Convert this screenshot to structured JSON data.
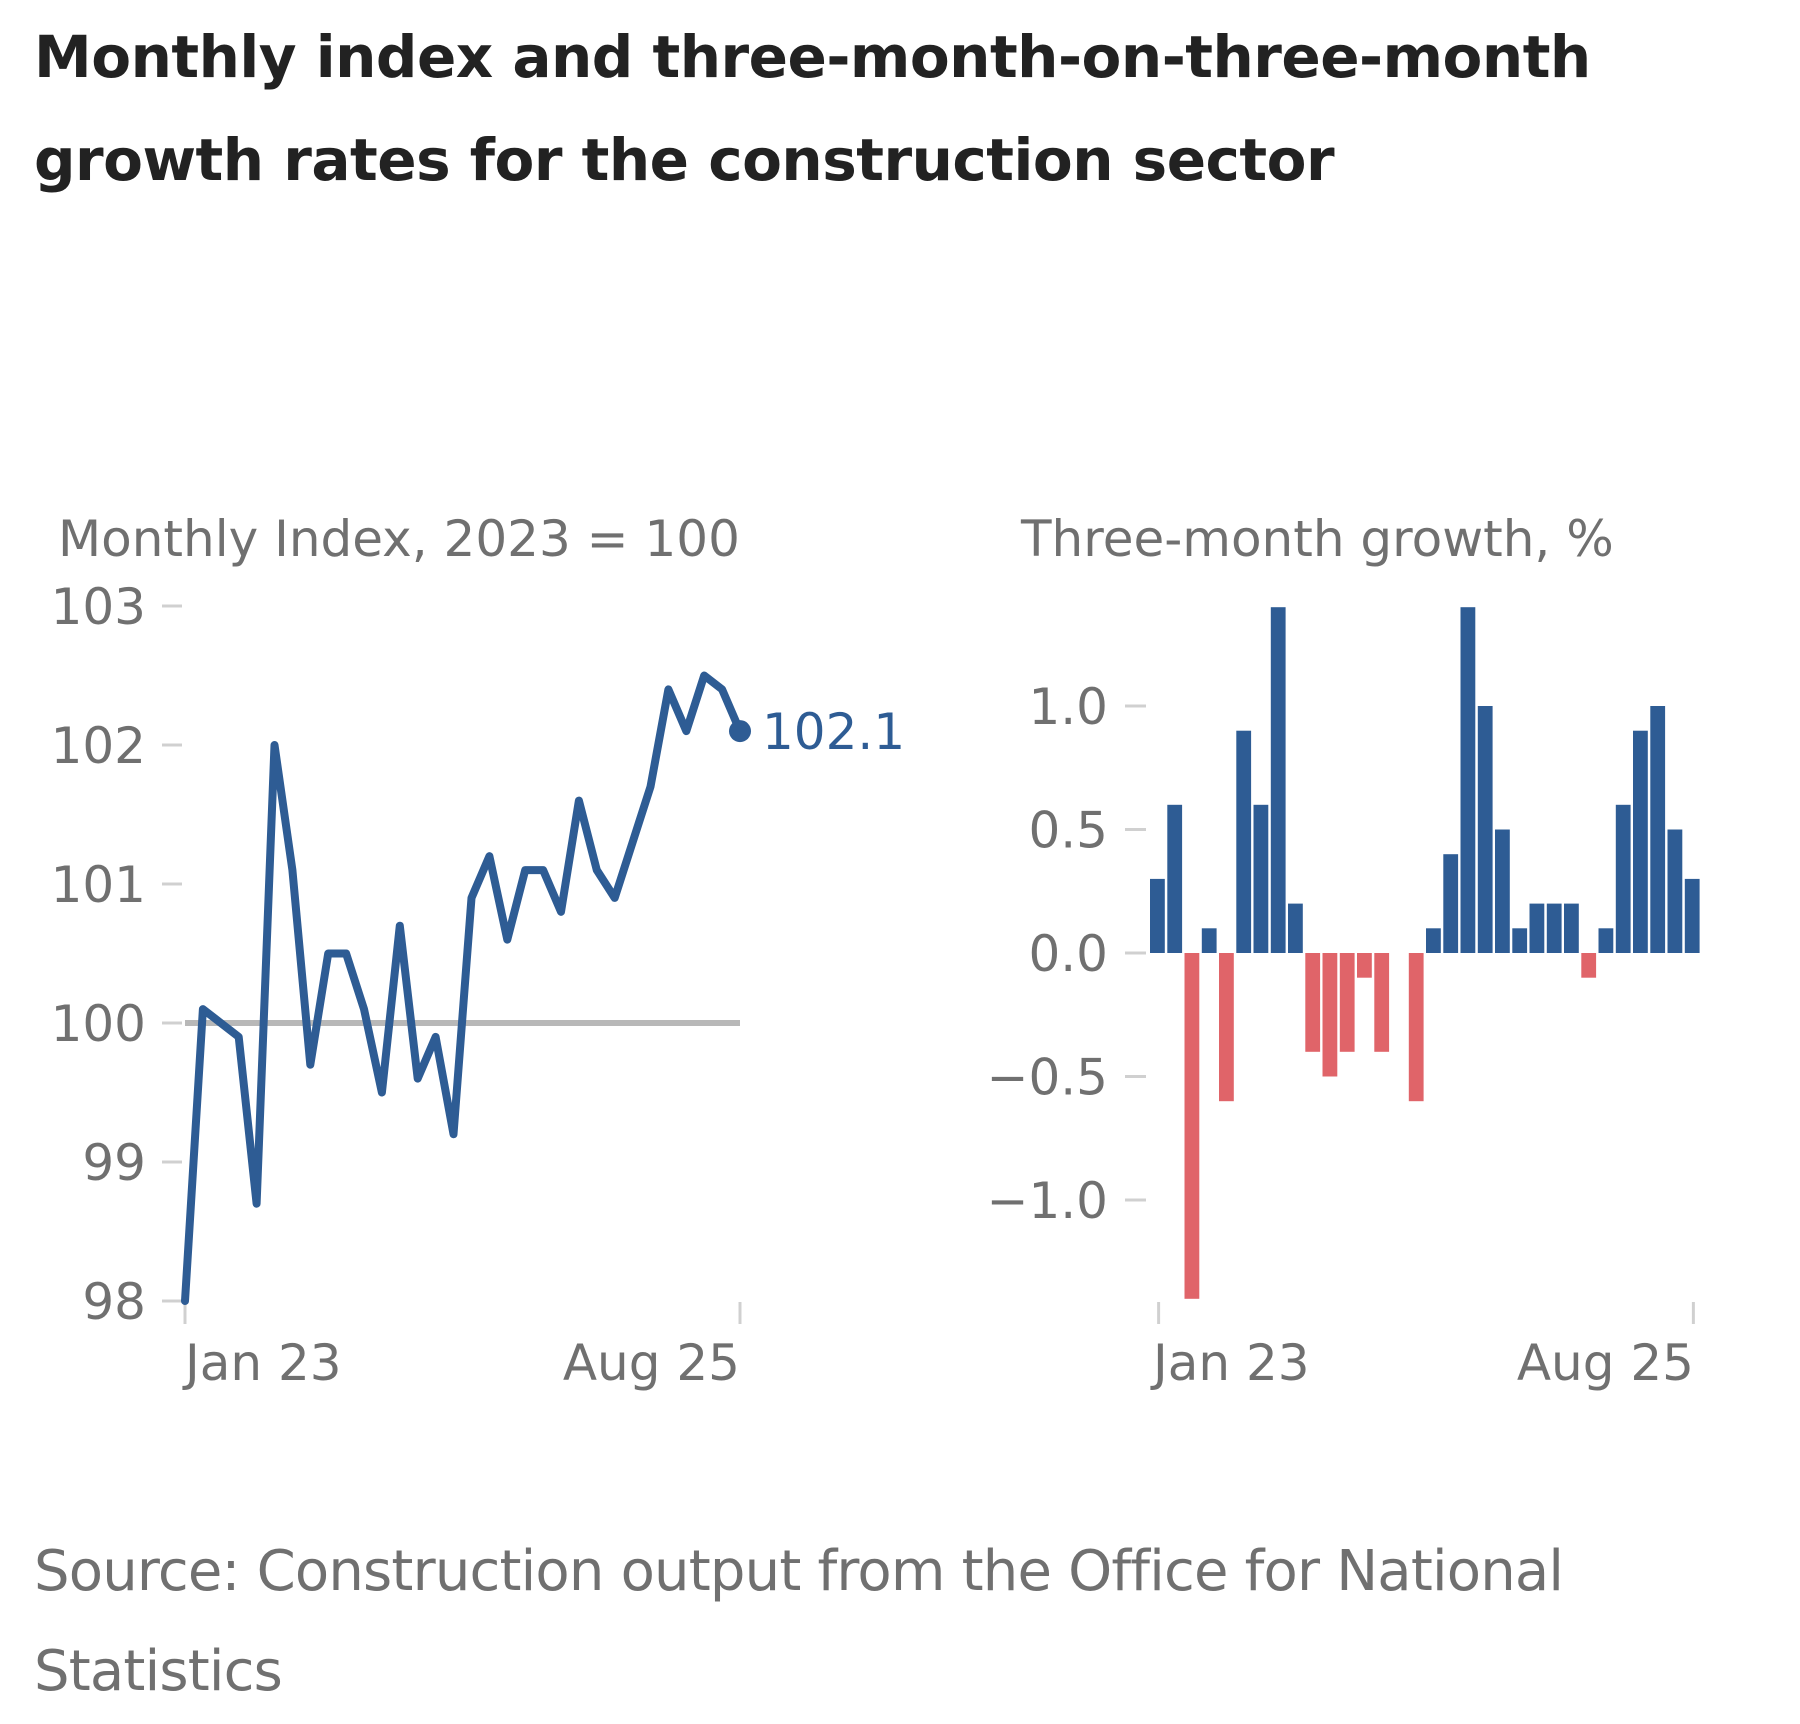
{
  "title": "Monthly index and three-month-on-three-month growth rates for the construction sector",
  "source": "Source: Construction output from the Office for National Statistics",
  "colors": {
    "line": "#2e5c94",
    "positive_bar": "#2e5c94",
    "negative_bar": "#e06469",
    "reference_line": "#b8b8b8",
    "axis_text": "#707070",
    "tick": "#d0d0d0"
  },
  "chart_data": [
    {
      "type": "line",
      "title": "Monthly Index, 2023 = 100",
      "xlabel": "",
      "ylabel": "",
      "x_start": "Jan 23",
      "x_end": "Aug 25",
      "x_tick_labels": [
        "Jan 23",
        "Aug 25"
      ],
      "y_ticks": [
        98,
        99,
        100,
        101,
        102,
        103
      ],
      "ylim": [
        98,
        103
      ],
      "grid": false,
      "reference_line": 100,
      "end_label": "102.1",
      "series": [
        {
          "name": "Monthly index",
          "values": [
            98.0,
            100.1,
            100.0,
            99.9,
            98.7,
            102.0,
            101.1,
            99.7,
            100.5,
            100.5,
            100.1,
            99.5,
            100.7,
            99.6,
            99.9,
            99.2,
            100.9,
            101.2,
            100.6,
            101.1,
            101.1,
            100.8,
            101.6,
            101.1,
            100.9,
            101.3,
            101.7,
            102.4,
            102.1,
            102.5,
            102.4,
            102.1
          ]
        }
      ]
    },
    {
      "type": "bar",
      "title": "Three-month growth, %",
      "xlabel": "",
      "ylabel": "",
      "x_start": "Jan 23",
      "x_end": "Aug 25",
      "x_tick_labels": [
        "Jan 23",
        "Aug 25"
      ],
      "y_ticks": [
        -1.0,
        -0.5,
        0.0,
        0.5,
        1.0
      ],
      "y_tick_labels": [
        "−1.0",
        "−0.5",
        "0.0",
        "0.5",
        "1.0"
      ],
      "ylim": [
        -1.4,
        1.4
      ],
      "grid": false,
      "series": [
        {
          "name": "Three-month growth",
          "values": [
            0.3,
            0.6,
            -1.4,
            0.1,
            -0.6,
            0.9,
            0.6,
            1.4,
            0.2,
            -0.4,
            -0.5,
            -0.4,
            -0.1,
            -0.4,
            0.0,
            -0.6,
            0.1,
            0.4,
            1.4,
            1.0,
            0.5,
            0.1,
            0.2,
            0.2,
            0.2,
            -0.1,
            0.1,
            0.6,
            0.9,
            1.0,
            0.5,
            0.3
          ]
        }
      ]
    }
  ]
}
